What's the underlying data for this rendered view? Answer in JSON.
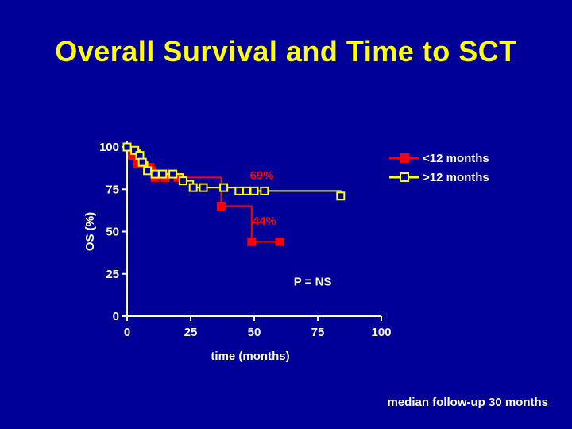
{
  "slide": {
    "title": "Overall Survival and Time to SCT",
    "footnote": "median follow-up 30 months"
  },
  "colors": {
    "background": "#000099",
    "title": "#ffff00",
    "axis": "#ffffff",
    "series_lt12": "#ff0000",
    "series_gt12": "#ffff00"
  },
  "chart_data": {
    "type": "line",
    "step": true,
    "xlabel": "time (months)",
    "ylabel": "OS (%)",
    "xlim": [
      0,
      100
    ],
    "ylim": [
      0,
      100
    ],
    "xticks": [
      0,
      25,
      50,
      75,
      100
    ],
    "yticks": [
      0,
      25,
      50,
      75,
      100
    ],
    "legend_position": "top-right",
    "series": [
      {
        "name": "<12 months",
        "color": "#ff0000",
        "marker": "filled-square",
        "x": [
          0,
          2,
          4,
          6,
          9,
          11,
          15,
          20,
          37,
          49,
          60
        ],
        "y": [
          100,
          95,
          90,
          90,
          88,
          82,
          82,
          82,
          65,
          44,
          44
        ]
      },
      {
        "name": ">12 months",
        "color": "#ffff00",
        "marker": "open-square",
        "x": [
          0,
          3,
          5,
          6,
          8,
          11,
          14,
          18,
          22,
          26,
          30,
          38,
          44,
          47,
          50,
          54,
          84
        ],
        "y": [
          100,
          98,
          95,
          91,
          86,
          84,
          84,
          84,
          80,
          76,
          76,
          76,
          74,
          74,
          74,
          74,
          71
        ]
      }
    ],
    "annotations": [
      {
        "text": "69%",
        "x": 53,
        "y": 81,
        "color": "#ff0000"
      },
      {
        "text": "44%",
        "x": 54,
        "y": 54,
        "color": "#ff0000"
      },
      {
        "text": "P = NS",
        "x": 73,
        "y": 18,
        "color": "#ffffff"
      }
    ]
  }
}
